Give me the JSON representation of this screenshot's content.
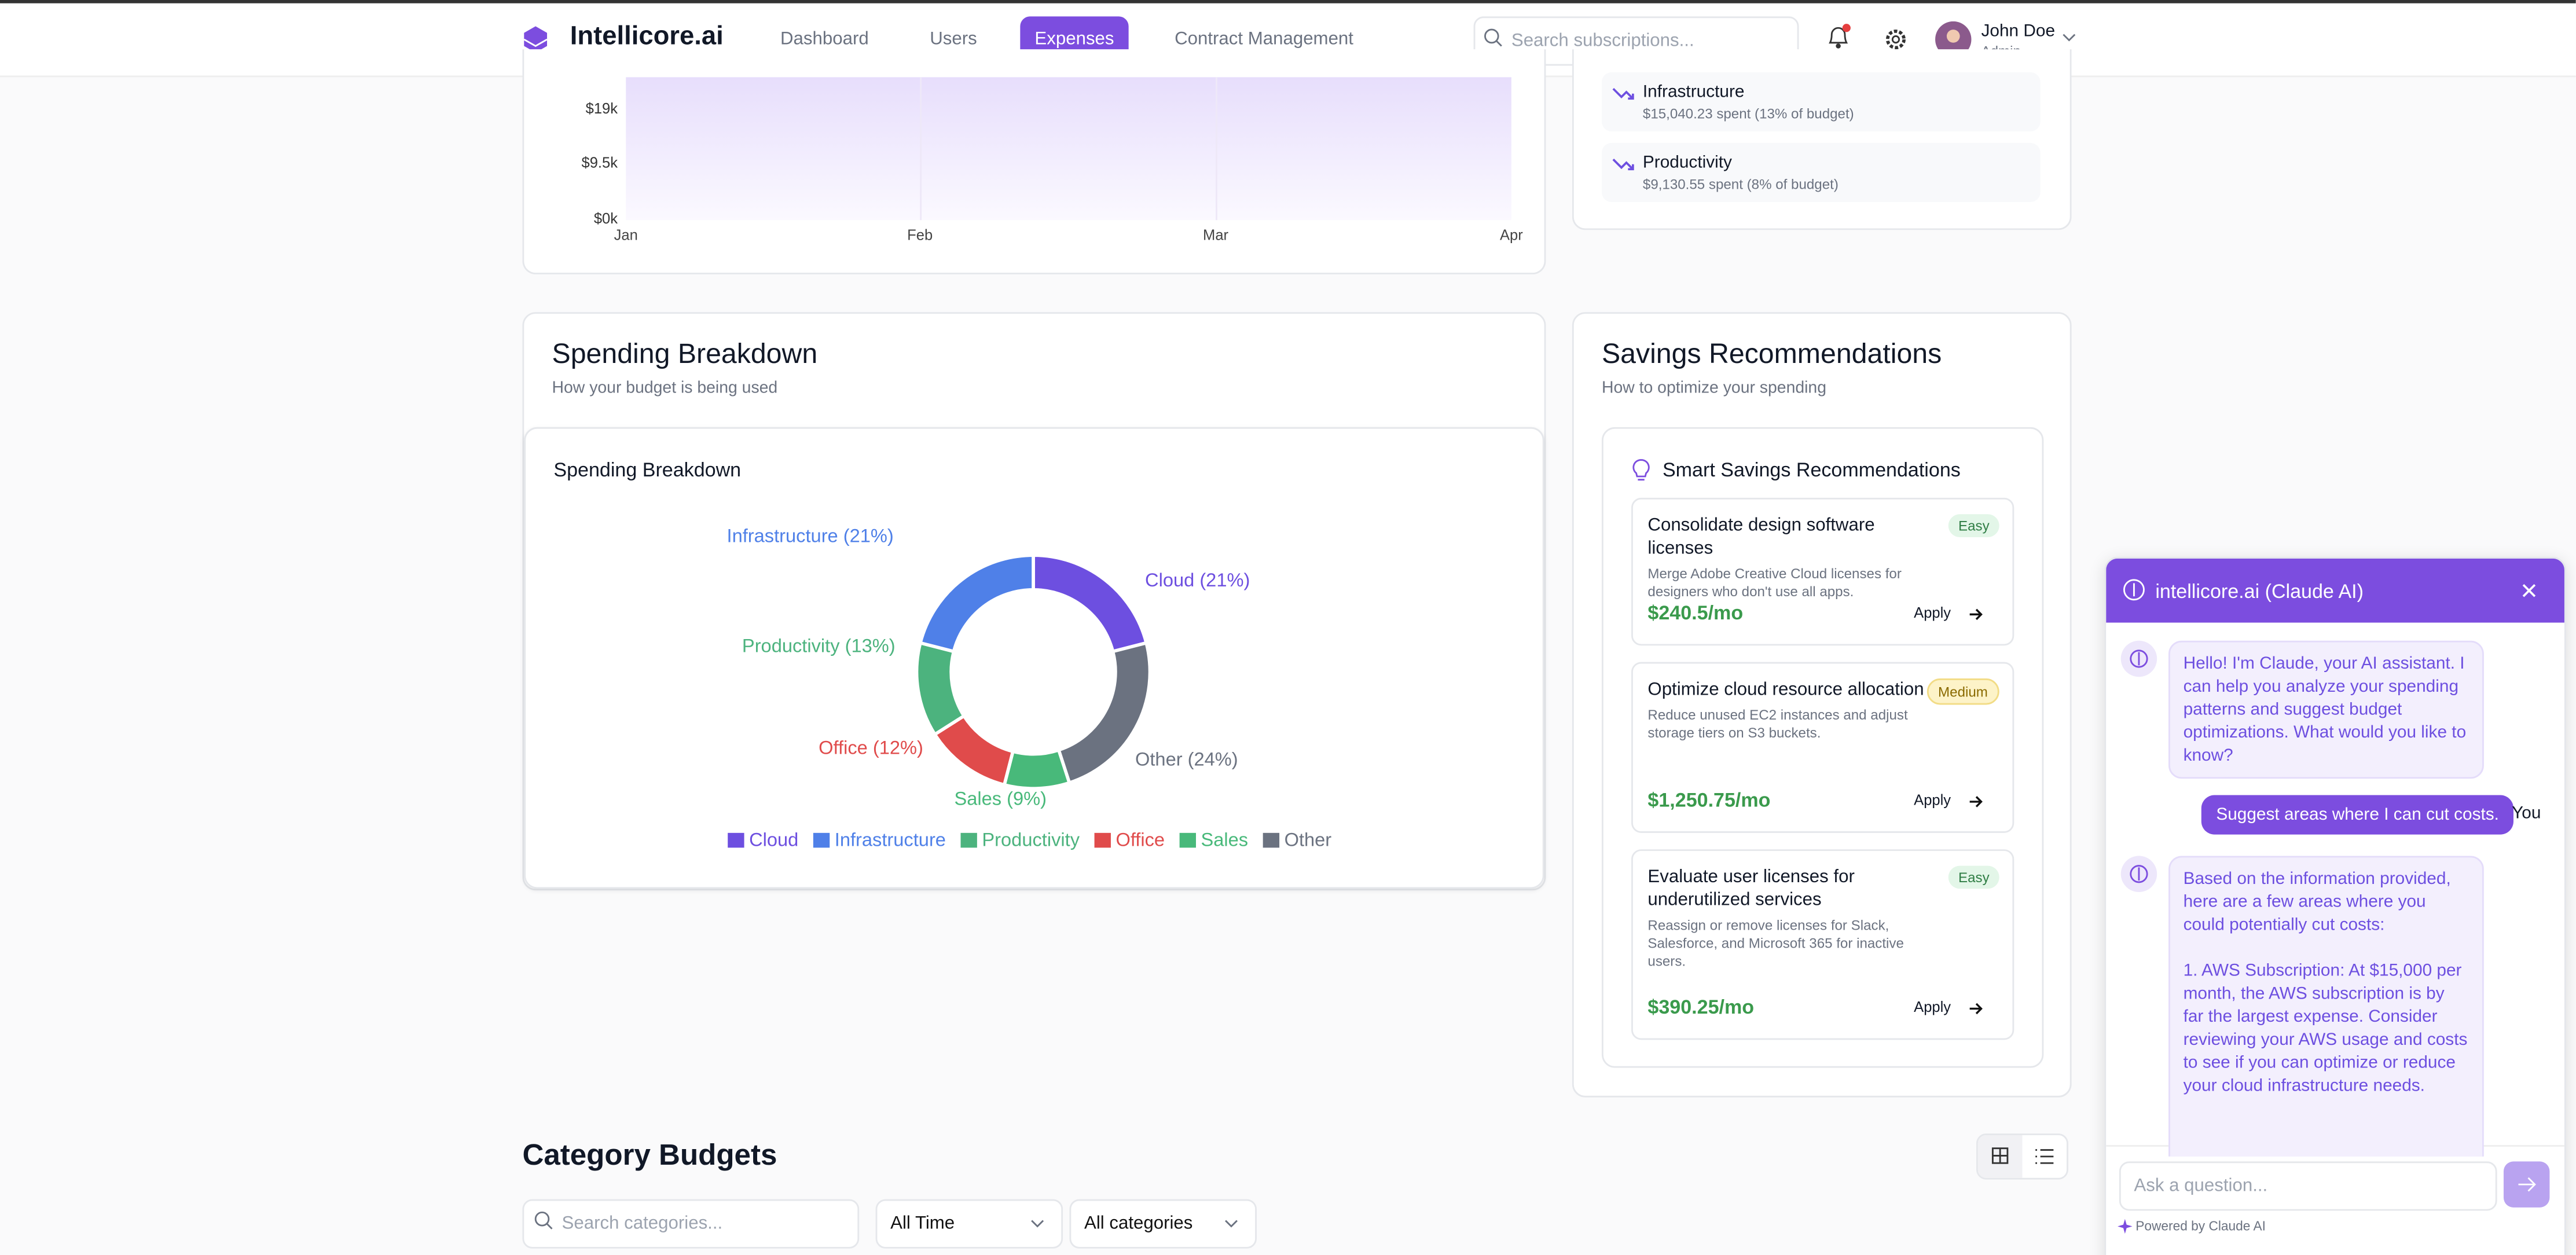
{
  "header": {
    "brand": "Intellicore.ai",
    "nav": [
      "Dashboard",
      "Users",
      "Expenses",
      "Contract Management"
    ],
    "search_placeholder": "Search subscriptions...",
    "user_name": "John Doe",
    "user_role": "Admin"
  },
  "trend": {
    "yticks": [
      "$19k",
      "$9.5k",
      "$0k"
    ],
    "xticks": [
      "Jan",
      "Feb",
      "Mar",
      "Apr"
    ]
  },
  "budget_alerts": [
    {
      "name": "Infrastructure",
      "detail": "$15,040.23 spent (13% of budget)"
    },
    {
      "name": "Productivity",
      "detail": "$9,130.55 spent (8% of budget)"
    }
  ],
  "breakdown": {
    "title": "Spending Breakdown",
    "subtitle": "How your budget is being used"
  },
  "chart_data": {
    "type": "donut",
    "title": "Spending Breakdown",
    "categories": [
      "Cloud",
      "Infrastructure",
      "Productivity",
      "Office",
      "Sales",
      "Other"
    ],
    "values": [
      21,
      21,
      13,
      12,
      9,
      24
    ],
    "value_labels": [
      "Cloud (21%)",
      "Infrastructure (21%)",
      "Productivity (13%)",
      "Office (12%)",
      "Sales (9%)",
      "Other (24%)"
    ],
    "colors": [
      "#6d4fe0",
      "#4f80e8",
      "#4cb37e",
      "#e04b4b",
      "#48b97a",
      "#6b7280"
    ],
    "order": [
      "Cloud",
      "Other",
      "Sales",
      "Office",
      "Productivity",
      "Infrastructure"
    ]
  },
  "savings": {
    "title": "Savings Recommendations",
    "subtitle": "How to optimize your spending",
    "panel_title": "Smart Savings Recommendations",
    "apply": "Apply",
    "items": [
      {
        "title": "Consolidate design software licenses",
        "badge": "Easy",
        "desc": "Merge Adobe Creative Cloud licenses for designers who don't use all apps.",
        "amount": "$240.5/mo"
      },
      {
        "title": "Optimize cloud resource allocation",
        "badge": "Medium",
        "desc": "Reduce unused EC2 instances and adjust storage tiers on S3 buckets.",
        "amount": "$1,250.75/mo"
      },
      {
        "title": "Evaluate user licenses for underutilized services",
        "badge": "Easy",
        "desc": "Reassign or remove licenses for Slack, Salesforce, and Microsoft 365 for inactive users.",
        "amount": "$390.25/mo"
      }
    ]
  },
  "category_budgets": {
    "title": "Category Budgets",
    "search_placeholder": "Search categories...",
    "time_filter": "All Time",
    "category_filter": "All categories"
  },
  "chat": {
    "title": "intellicore.ai (Claude AI)",
    "messages": [
      {
        "role": "assistant",
        "text": "Hello! I'm Claude, your AI assistant. I can help you analyze your spending patterns and suggest budget optimizations. What would you like to know?"
      },
      {
        "role": "user",
        "text": "Suggest areas where I can cut costs.",
        "label": "You"
      },
      {
        "role": "assistant",
        "text": "Based on the information provided, here are a few areas where you could potentially cut costs:",
        "detail": "1. AWS Subscription: At $15,000 per month, the AWS subscription is by far the largest expense. Consider reviewing your AWS usage and costs to see if you can optimize or reduce your cloud infrastructure needs."
      }
    ],
    "input_placeholder": "Ask a question...",
    "powered": "Powered by Claude AI"
  }
}
